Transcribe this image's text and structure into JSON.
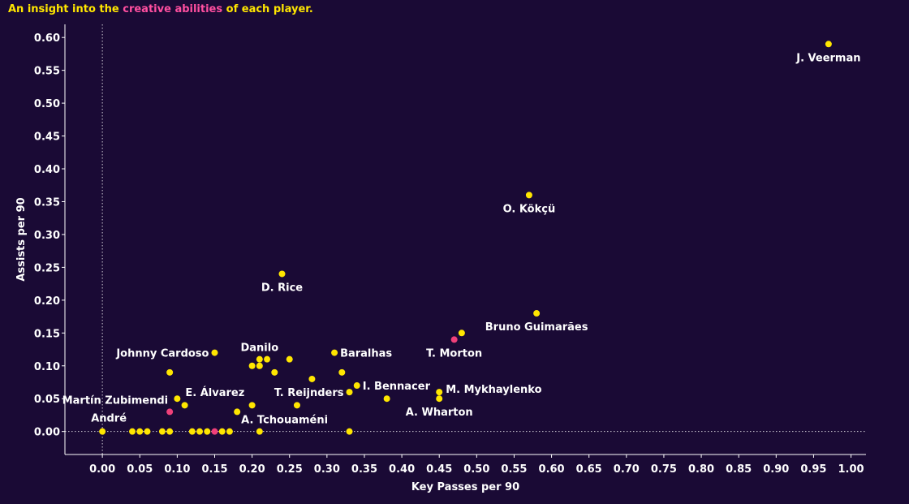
{
  "title": {
    "prefix": "An insight into the ",
    "highlight": "creative abilities",
    "suffix": " of each player."
  },
  "colors": {
    "background": "#1a0a35",
    "point": "#ffe600",
    "highlight_point": "#f0407a",
    "text": "#ffffff",
    "title": "#ffe600",
    "title_highlight": "#ff4fa0"
  },
  "chart_data": {
    "type": "scatter",
    "title": "An insight into the creative abilities of each player.",
    "xlabel": "Key Passes per 90",
    "ylabel": "Assists per 90",
    "xlim": [
      -0.05,
      1.02
    ],
    "ylim": [
      -0.035,
      0.62
    ],
    "xticks": [
      "0.00",
      "0.05",
      "0.10",
      "0.15",
      "0.20",
      "0.25",
      "0.30",
      "0.35",
      "0.40",
      "0.45",
      "0.50",
      "0.55",
      "0.60",
      "0.65",
      "0.70",
      "0.75",
      "0.80",
      "0.85",
      "0.90",
      "0.95",
      "1.00"
    ],
    "yticks": [
      "0.00",
      "0.05",
      "0.10",
      "0.15",
      "0.20",
      "0.25",
      "0.30",
      "0.35",
      "0.40",
      "0.45",
      "0.50",
      "0.55",
      "0.60"
    ],
    "reference_lines": {
      "x": 0.0,
      "y": 0.0
    },
    "points": [
      {
        "x": 0.97,
        "y": 0.59,
        "label": "J. Veerman",
        "highlight": false
      },
      {
        "x": 0.57,
        "y": 0.36,
        "label": "O. Kökçü",
        "highlight": false
      },
      {
        "x": 0.24,
        "y": 0.24,
        "label": "D. Rice",
        "highlight": false
      },
      {
        "x": 0.58,
        "y": 0.18,
        "label": "Bruno Guimarães",
        "highlight": false
      },
      {
        "x": 0.48,
        "y": 0.15,
        "label": "",
        "highlight": false
      },
      {
        "x": 0.47,
        "y": 0.14,
        "label": "T. Morton",
        "highlight": true
      },
      {
        "x": 0.15,
        "y": 0.12,
        "label": "Johnny Cardoso",
        "highlight": false
      },
      {
        "x": 0.31,
        "y": 0.12,
        "label": "Baralhas",
        "highlight": false
      },
      {
        "x": 0.21,
        "y": 0.11,
        "label": "Danilo",
        "highlight": false
      },
      {
        "x": 0.22,
        "y": 0.11,
        "label": "",
        "highlight": false
      },
      {
        "x": 0.25,
        "y": 0.11,
        "label": "",
        "highlight": false
      },
      {
        "x": 0.2,
        "y": 0.1,
        "label": "",
        "highlight": false
      },
      {
        "x": 0.21,
        "y": 0.1,
        "label": "",
        "highlight": false
      },
      {
        "x": 0.09,
        "y": 0.09,
        "label": "",
        "highlight": false
      },
      {
        "x": 0.23,
        "y": 0.09,
        "label": "",
        "highlight": false
      },
      {
        "x": 0.32,
        "y": 0.09,
        "label": "",
        "highlight": false
      },
      {
        "x": 0.28,
        "y": 0.08,
        "label": "",
        "highlight": false
      },
      {
        "x": 0.34,
        "y": 0.07,
        "label": "I. Bennacer",
        "highlight": false
      },
      {
        "x": 0.33,
        "y": 0.06,
        "label": "T. Reijnders",
        "highlight": false
      },
      {
        "x": 0.45,
        "y": 0.06,
        "label": "M. Mykhaylenko",
        "highlight": false
      },
      {
        "x": 0.45,
        "y": 0.05,
        "label": "A. Wharton",
        "highlight": false
      },
      {
        "x": 0.38,
        "y": 0.05,
        "label": "",
        "highlight": false
      },
      {
        "x": 0.1,
        "y": 0.05,
        "label": "E. Álvarez",
        "highlight": false
      },
      {
        "x": 0.11,
        "y": 0.04,
        "label": "",
        "highlight": false
      },
      {
        "x": 0.2,
        "y": 0.04,
        "label": "",
        "highlight": false
      },
      {
        "x": 0.26,
        "y": 0.04,
        "label": "",
        "highlight": false
      },
      {
        "x": 0.09,
        "y": 0.03,
        "label": "Martín Zubimendi",
        "highlight": true
      },
      {
        "x": 0.18,
        "y": 0.03,
        "label": "A. Tchouaméni",
        "highlight": false
      },
      {
        "x": 0.0,
        "y": 0.0,
        "label": "André",
        "highlight": false
      },
      {
        "x": 0.04,
        "y": 0.0,
        "label": "",
        "highlight": false
      },
      {
        "x": 0.05,
        "y": 0.0,
        "label": "",
        "highlight": false
      },
      {
        "x": 0.06,
        "y": 0.0,
        "label": "",
        "highlight": false
      },
      {
        "x": 0.08,
        "y": 0.0,
        "label": "",
        "highlight": false
      },
      {
        "x": 0.09,
        "y": 0.0,
        "label": "",
        "highlight": false
      },
      {
        "x": 0.12,
        "y": 0.0,
        "label": "",
        "highlight": false
      },
      {
        "x": 0.13,
        "y": 0.0,
        "label": "",
        "highlight": false
      },
      {
        "x": 0.14,
        "y": 0.0,
        "label": "",
        "highlight": false
      },
      {
        "x": 0.15,
        "y": 0.0,
        "label": "",
        "highlight": true
      },
      {
        "x": 0.16,
        "y": 0.0,
        "label": "",
        "highlight": false
      },
      {
        "x": 0.17,
        "y": 0.0,
        "label": "",
        "highlight": false
      },
      {
        "x": 0.21,
        "y": 0.0,
        "label": "",
        "highlight": false
      },
      {
        "x": 0.33,
        "y": 0.0,
        "label": "",
        "highlight": false
      }
    ]
  }
}
